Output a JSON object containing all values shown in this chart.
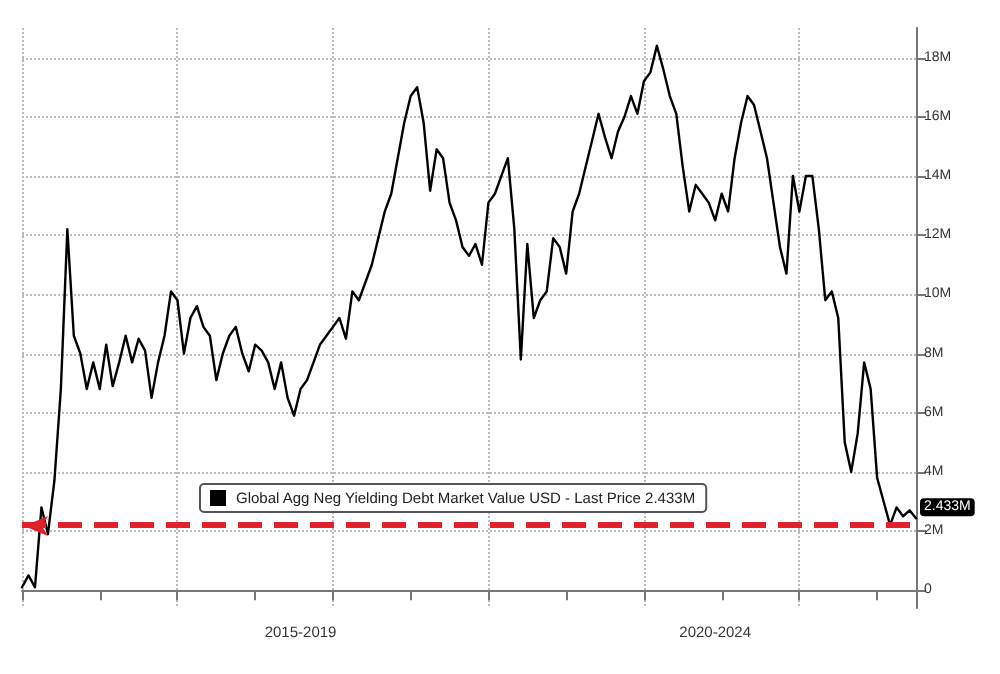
{
  "chart_data": {
    "type": "line",
    "categories": [
      null,
      null,
      null,
      null,
      null,
      null,
      null,
      null,
      null,
      null,
      null,
      null,
      null,
      null,
      null,
      null,
      null,
      null,
      null,
      null,
      null,
      null,
      null,
      null,
      null,
      null,
      null,
      null,
      null,
      null,
      null,
      null,
      null,
      null,
      null,
      null,
      null,
      null,
      null,
      null,
      null,
      null,
      null,
      "2015-2019",
      null,
      null,
      null,
      null,
      null,
      null,
      null,
      null,
      null,
      null,
      null,
      null,
      null,
      null,
      null,
      null,
      null,
      null,
      null,
      null,
      null,
      null,
      null,
      null,
      null,
      null,
      null,
      null,
      null,
      null,
      null,
      null,
      null,
      null,
      null,
      null,
      null,
      null,
      null,
      null,
      null,
      null,
      null,
      null,
      null,
      null,
      null,
      null,
      null,
      null,
      null,
      null,
      null,
      null,
      null,
      null,
      null,
      null,
      null,
      null,
      null,
      null,
      null,
      "2020-2024",
      null,
      null,
      null,
      null,
      null,
      null,
      null,
      null,
      null,
      null,
      null,
      null,
      null,
      null,
      null,
      null,
      null,
      null,
      null,
      null,
      null,
      null,
      null,
      null,
      null,
      null,
      null,
      null,
      null,
      null,
      null
    ],
    "series": [
      {
        "name": "Global Agg Neg Yielding Debt Market Value USD - Last Price 2.433M",
        "color": "#000000",
        "values": [
          0.1,
          0.5,
          0.1,
          2.8,
          1.9,
          3.7,
          6.8,
          12.2,
          8.6,
          8.0,
          6.8,
          7.7,
          6.8,
          8.3,
          6.9,
          7.7,
          8.6,
          7.7,
          8.5,
          8.1,
          6.5,
          7.7,
          8.6,
          10.1,
          9.8,
          8.0,
          9.2,
          9.6,
          8.9,
          8.6,
          7.1,
          8.0,
          8.6,
          8.9,
          8.0,
          7.4,
          8.3,
          8.1,
          7.7,
          6.8,
          7.7,
          6.5,
          5.9,
          6.8,
          7.1,
          7.7,
          8.3,
          8.6,
          8.9,
          9.2,
          8.5,
          10.1,
          9.8,
          10.4,
          11.0,
          11.9,
          12.8,
          13.4,
          14.6,
          15.8,
          16.7,
          17.0,
          15.8,
          13.5,
          14.9,
          14.6,
          13.1,
          12.5,
          11.6,
          11.3,
          11.7,
          11.0,
          13.1,
          13.4,
          14.0,
          14.6,
          12.2,
          7.8,
          11.7,
          9.2,
          9.8,
          10.1,
          11.9,
          11.6,
          10.7,
          12.8,
          13.4,
          14.3,
          15.2,
          16.1,
          15.3,
          14.6,
          15.5,
          16.0,
          16.7,
          16.1,
          17.2,
          17.5,
          18.4,
          17.6,
          16.7,
          16.1,
          14.3,
          12.8,
          13.7,
          13.4,
          13.1,
          12.5,
          13.4,
          12.8,
          14.6,
          15.8,
          16.7,
          16.4,
          15.5,
          14.6,
          13.1,
          11.6,
          10.7,
          14.0,
          12.8,
          14.0,
          14.0,
          12.2,
          9.8,
          10.1,
          9.2,
          5.0,
          4.0,
          5.3,
          7.7,
          6.8,
          3.8,
          3.0,
          2.2,
          2.8,
          2.5,
          2.7,
          2.433
        ]
      }
    ],
    "ylim": [
      -0.6,
      19
    ],
    "yticks": [
      {
        "value": 0,
        "label": "0"
      },
      {
        "value": 2,
        "label": "2M"
      },
      {
        "value": 4,
        "label": "4M"
      },
      {
        "value": 6,
        "label": "6M"
      },
      {
        "value": 8,
        "label": "8M"
      },
      {
        "value": 10,
        "label": "10M"
      },
      {
        "value": 12,
        "label": "12M"
      },
      {
        "value": 14,
        "label": "14M"
      },
      {
        "value": 16,
        "label": "16M"
      },
      {
        "value": 18,
        "label": "18M"
      }
    ],
    "ref_lines": [
      {
        "axis": "y",
        "value": 2.2,
        "color": "#e0202a",
        "line_style": "dashed"
      }
    ],
    "annotations": [
      "2.433M"
    ],
    "grid": true,
    "legend": "bottom left",
    "marker": "none",
    "line_style": "solid"
  }
}
